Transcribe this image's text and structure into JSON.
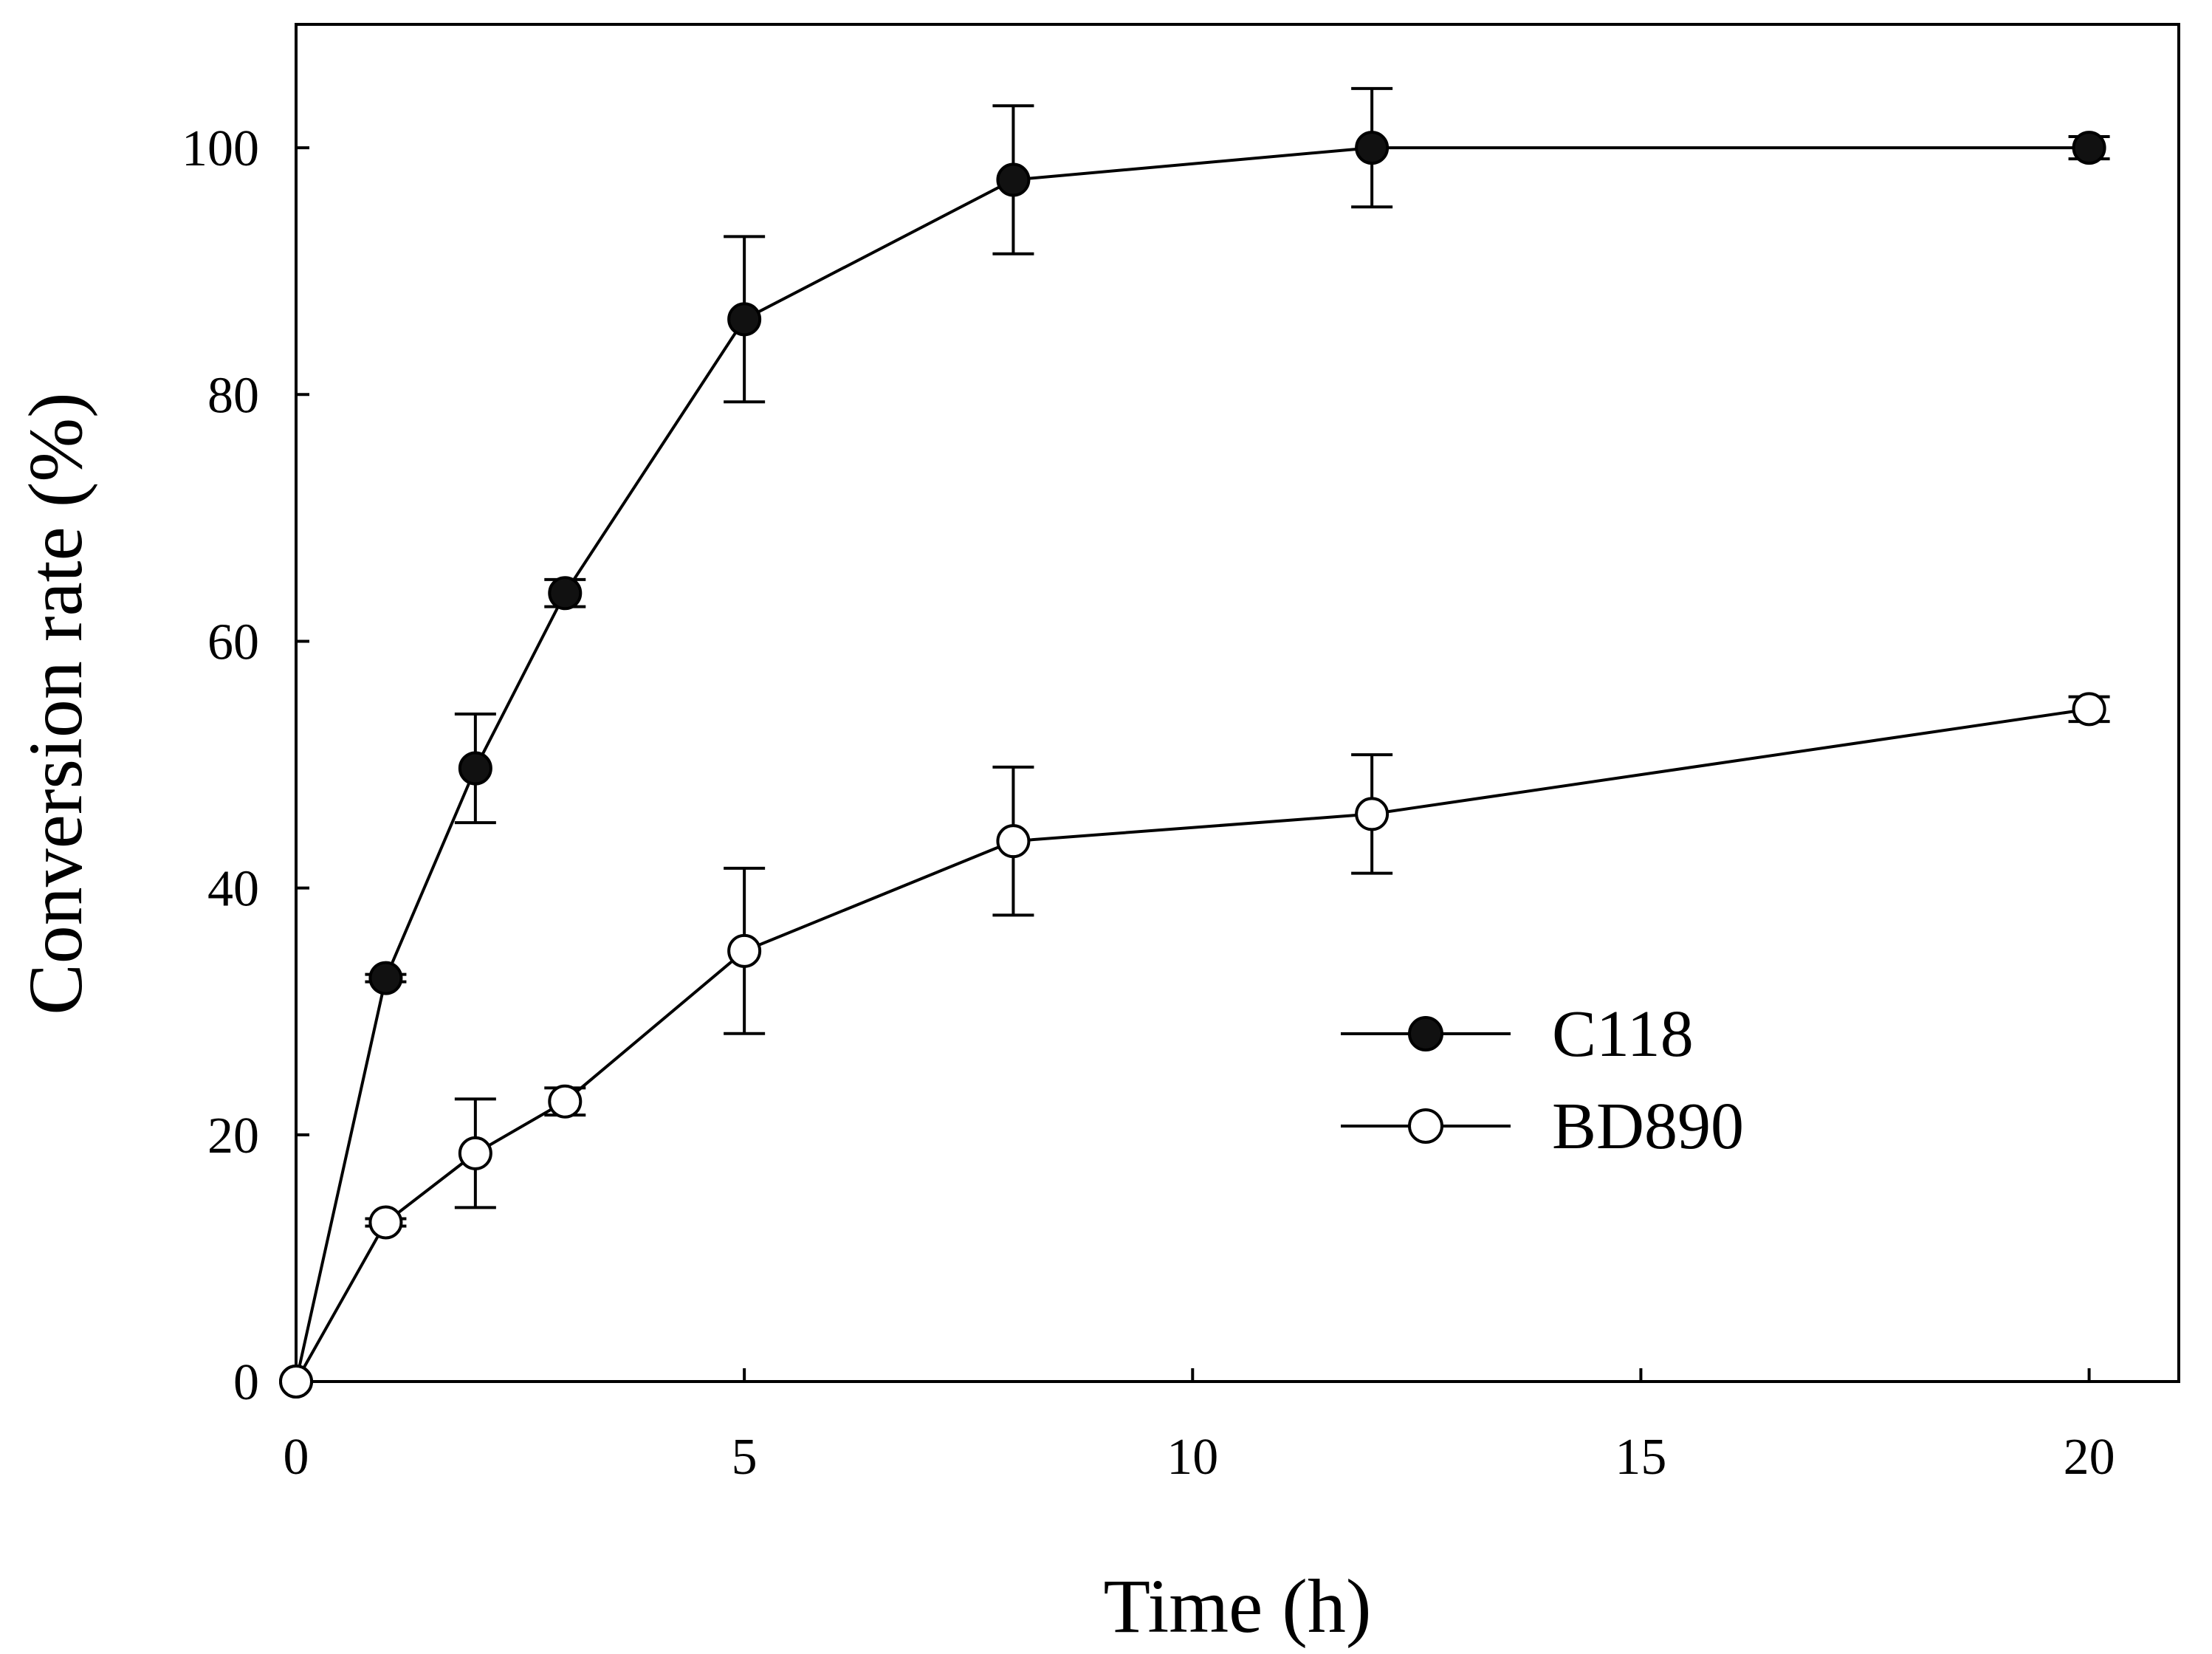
{
  "chart_data": {
    "type": "line",
    "title": "",
    "xlabel": "Time (h)",
    "ylabel": "Conversion rate (%)",
    "xlim": [
      0,
      21
    ],
    "ylim": [
      0,
      110
    ],
    "xticks": [
      0,
      5,
      10,
      15,
      20
    ],
    "yticks": [
      0,
      20,
      40,
      60,
      80,
      100
    ],
    "xtick_labels": [
      "0",
      "5",
      "10",
      "15",
      "20"
    ],
    "ytick_labels": [
      "0",
      "20",
      "40",
      "60",
      "80",
      "100"
    ],
    "grid": false,
    "legend_position": "center-right",
    "series": [
      {
        "name": "C118",
        "marker": "filled-circle",
        "x": [
          0,
          1,
          2,
          3,
          5,
          8,
          12,
          20
        ],
        "y": [
          0,
          32.7,
          49.7,
          63.9,
          86.1,
          97.4,
          100,
          100
        ],
        "error": [
          0,
          0.3,
          4.4,
          1.1,
          6.7,
          6.0,
          4.8,
          0.9
        ]
      },
      {
        "name": "BD890",
        "marker": "open-circle",
        "x": [
          0,
          1,
          2,
          3,
          5,
          8,
          12,
          20
        ],
        "y": [
          0,
          12.9,
          18.5,
          22.7,
          34.9,
          43.8,
          46.0,
          54.5
        ],
        "error": [
          0,
          0.3,
          4.4,
          1.1,
          6.7,
          6.0,
          4.8,
          1.0
        ]
      }
    ]
  }
}
